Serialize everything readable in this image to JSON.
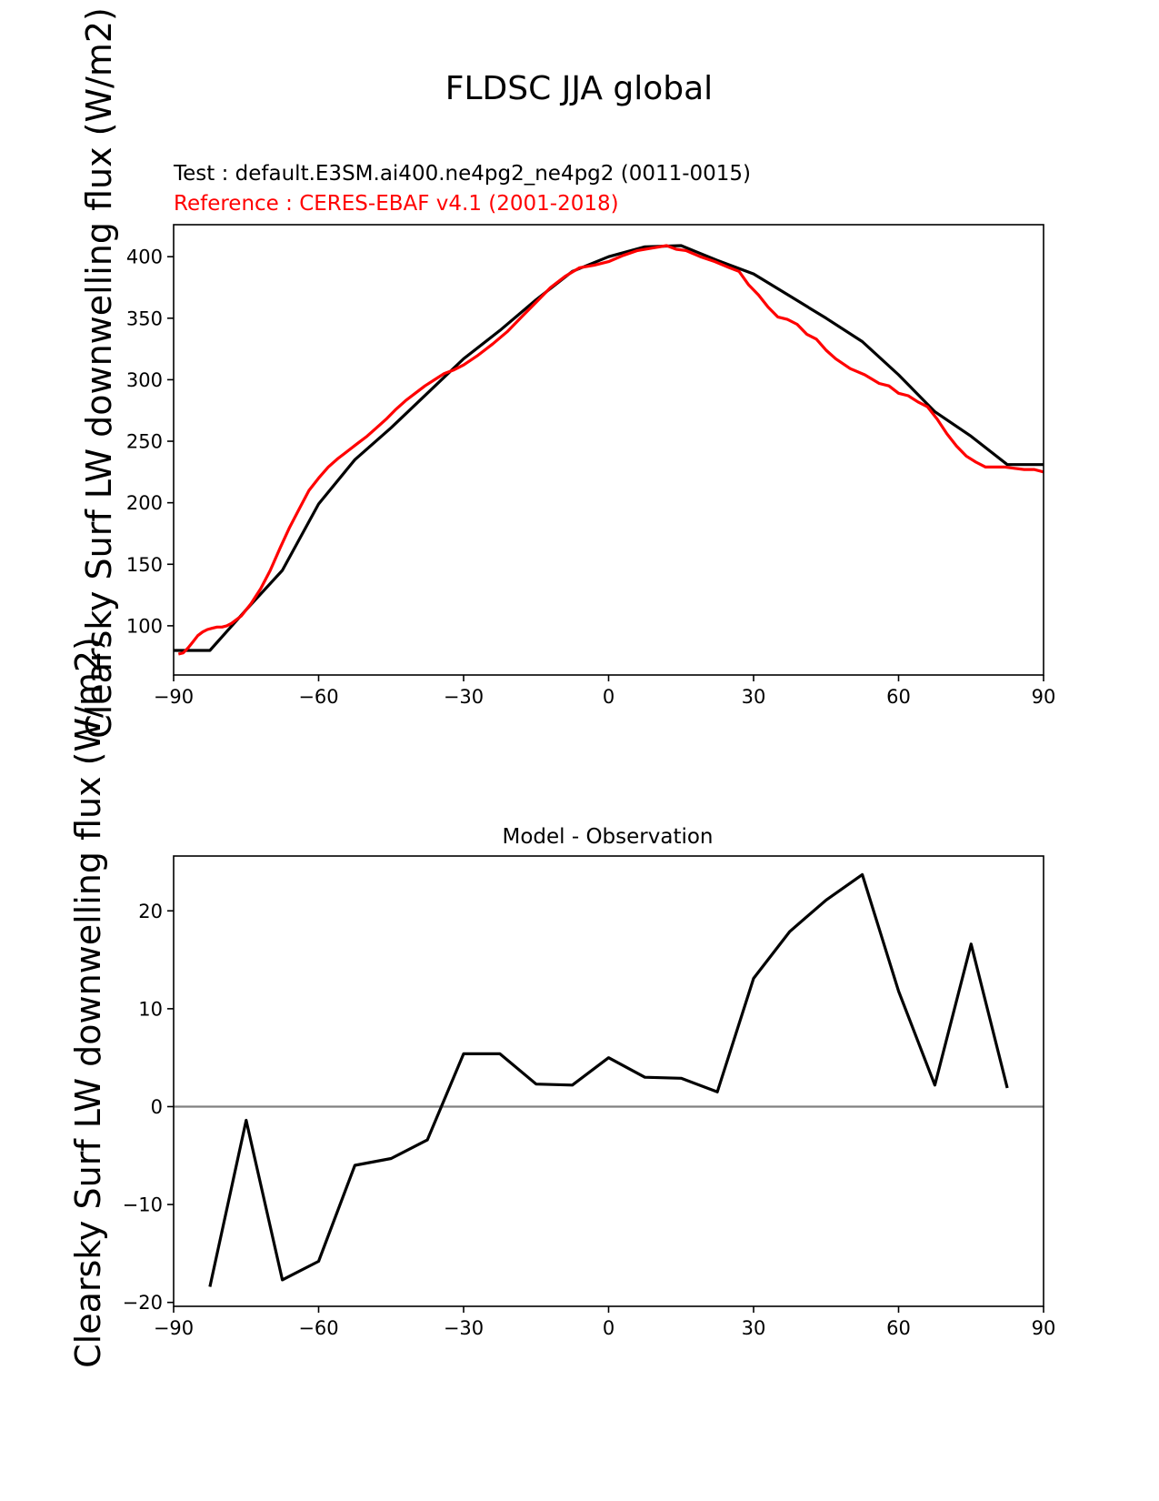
{
  "figure": {
    "suptitle": "FLDSC JJA global"
  },
  "chart_data": [
    {
      "type": "line",
      "test_label": "Test : default.E3SM.ai400.ne4pg2_ne4pg2 (0011-0015)",
      "ref_label": "Reference : CERES-EBAF v4.1 (2001-2018)",
      "ylabel": "Clearsky Surf LW downwelling flux (W/m2)",
      "xlim": [
        -90,
        90
      ],
      "ylim": [
        60,
        426
      ],
      "xticks": [
        -90,
        -60,
        -30,
        0,
        30,
        60,
        90
      ],
      "xtick_labels": [
        "−90",
        "−60",
        "−30",
        "0",
        "30",
        "60",
        "90"
      ],
      "yticks": [
        100,
        150,
        200,
        250,
        300,
        350,
        400
      ],
      "ytick_labels": [
        "100",
        "150",
        "200",
        "250",
        "300",
        "350",
        "400"
      ],
      "colors": {
        "test": "#000000",
        "reference": "#ff0000"
      },
      "series": [
        {
          "name": "Test",
          "x": [
            -90,
            -82.5,
            -75,
            -67.5,
            -60,
            -52.5,
            -45,
            -37.5,
            -30,
            -22.5,
            -15,
            -7.5,
            0,
            7.5,
            15,
            22.5,
            30,
            37.5,
            45,
            52.5,
            60,
            67.5,
            75,
            82.5,
            90
          ],
          "y": [
            80,
            80,
            113,
            145,
            199,
            235,
            261,
            289,
            317,
            340,
            365,
            388,
            400,
            408,
            409,
            397,
            386,
            368,
            350,
            331,
            304,
            274,
            254,
            231,
            231
          ]
        },
        {
          "name": "Reference",
          "x": [
            -89,
            -88,
            -87,
            -86,
            -85,
            -84,
            -83,
            -82,
            -81,
            -80,
            -79,
            -78,
            -76,
            -74,
            -72,
            -70,
            -68,
            -66,
            -64,
            -62,
            -60,
            -58,
            -56,
            -54,
            -52,
            -50,
            -48,
            -46,
            -44,
            -42,
            -40,
            -38,
            -36,
            -34,
            -32,
            -30,
            -27,
            -24,
            -21,
            -18,
            -15,
            -12,
            -9,
            -6,
            -3,
            0,
            3,
            6,
            9,
            12,
            14,
            16,
            19,
            22,
            25,
            27,
            29,
            31,
            33,
            35,
            37,
            39,
            41,
            43,
            45,
            47,
            50,
            53,
            56,
            58,
            60,
            62,
            64,
            66,
            68,
            70,
            72,
            74,
            76,
            78,
            80,
            82,
            84,
            86,
            88,
            90
          ],
          "y": [
            77,
            78,
            82,
            87,
            92,
            95,
            97,
            98,
            99,
            99,
            100,
            102,
            108,
            118,
            130,
            145,
            163,
            180,
            195,
            210,
            220,
            229,
            236,
            242,
            248,
            254,
            261,
            268,
            276,
            283,
            289,
            295,
            300,
            305,
            308,
            312,
            320,
            329,
            339,
            351,
            363,
            375,
            384,
            391,
            393,
            396,
            401,
            405,
            407,
            409,
            406,
            405,
            400,
            396,
            391,
            388,
            377,
            369,
            359,
            351,
            349,
            345,
            337,
            333,
            324,
            317,
            309,
            304,
            297,
            295,
            289,
            287,
            282,
            278,
            268,
            256,
            246,
            238,
            233,
            229,
            229,
            229,
            228,
            227,
            227,
            225
          ]
        }
      ]
    },
    {
      "type": "line",
      "title": "Model - Observation",
      "ylabel": "Clearsky Surf LW downwelling flux (W/m2)",
      "xlim": [
        -90,
        90
      ],
      "ylim": [
        -20.4,
        25.6
      ],
      "xticks": [
        -90,
        -60,
        -30,
        0,
        30,
        60,
        90
      ],
      "xtick_labels": [
        "−90",
        "−60",
        "−30",
        "0",
        "30",
        "60",
        "90"
      ],
      "yticks": [
        -20,
        -10,
        0,
        10,
        20
      ],
      "ytick_labels": [
        "−20",
        "−10",
        "0",
        "10",
        "20"
      ],
      "zero_line": 0,
      "colors": {
        "diff": "#000000",
        "zero": "#808080"
      },
      "series": [
        {
          "name": "Model - Observation",
          "x": [
            -82.5,
            -75,
            -67.5,
            -60,
            -52.5,
            -45,
            -37.5,
            -30,
            -22.5,
            -15,
            -7.5,
            0,
            7.5,
            15,
            22.5,
            30,
            37.5,
            45,
            52.5,
            60,
            67.5,
            75,
            82.5
          ],
          "y": [
            -18.4,
            -1.4,
            -17.7,
            -15.8,
            -6.0,
            -5.3,
            -3.4,
            5.4,
            5.4,
            2.3,
            2.2,
            5.0,
            3.0,
            2.9,
            1.5,
            13.1,
            17.9,
            21.1,
            23.7,
            11.8,
            2.2,
            16.6,
            1.9
          ]
        }
      ]
    }
  ]
}
